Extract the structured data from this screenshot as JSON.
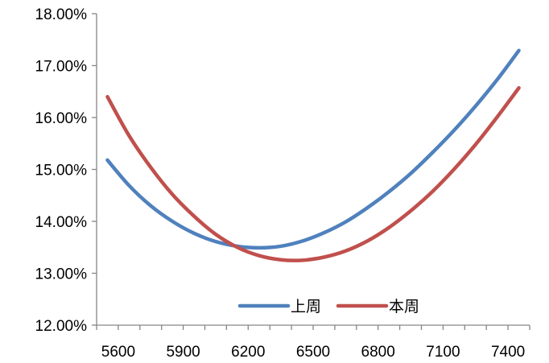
{
  "chart_data": {
    "type": "line",
    "title": "",
    "xlabel": "",
    "ylabel": "",
    "xlim": [
      5500,
      7500
    ],
    "ylim": [
      0.12,
      0.18
    ],
    "x_ticks": [
      5600,
      5900,
      6200,
      6500,
      6800,
      7100,
      7400
    ],
    "x_tick_labels": [
      "5600",
      "5900",
      "6200",
      "6500",
      "6800",
      "7100",
      "7400"
    ],
    "y_ticks": [
      0.12,
      0.13,
      0.14,
      0.15,
      0.16,
      0.17,
      0.18
    ],
    "y_tick_labels": [
      "12.00%",
      "13.00%",
      "14.00%",
      "15.00%",
      "16.00%",
      "17.00%",
      "18.00%"
    ],
    "grid": false,
    "legend": "bottom-right",
    "series": [
      {
        "name": "上周",
        "color": "#4F81BD",
        "x": [
          5550,
          5650,
          5750,
          5850,
          5950,
          6050,
          6150,
          6250,
          6350,
          6450,
          6550,
          6650,
          6750,
          6850,
          6950,
          7050,
          7150,
          7250,
          7350,
          7450
        ],
        "y": [
          0.1518,
          0.1469,
          0.143,
          0.14,
          0.1377,
          0.1361,
          0.1352,
          0.1349,
          0.1352,
          0.1362,
          0.1378,
          0.1399,
          0.1426,
          0.1457,
          0.1492,
          0.1532,
          0.1575,
          0.1622,
          0.1673,
          0.1729
        ]
      },
      {
        "name": "本周",
        "color": "#C0504D",
        "x": [
          5550,
          5650,
          5750,
          5850,
          5950,
          6050,
          6150,
          6250,
          6350,
          6450,
          6550,
          6650,
          6750,
          6850,
          6950,
          7050,
          7150,
          7250,
          7350,
          7450
        ],
        "y": [
          0.164,
          0.1565,
          0.1504,
          0.1452,
          0.141,
          0.1375,
          0.135,
          0.1334,
          0.1326,
          0.1325,
          0.1331,
          0.1343,
          0.1362,
          0.1388,
          0.142,
          0.1457,
          0.15,
          0.1548,
          0.1601,
          0.1657
        ]
      }
    ]
  }
}
